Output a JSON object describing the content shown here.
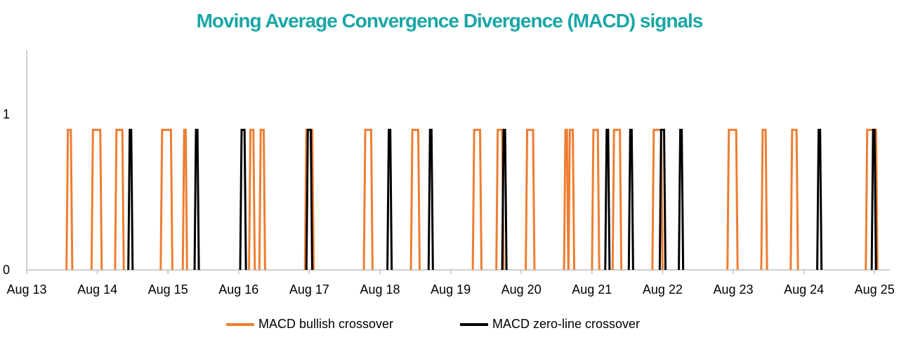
{
  "colors": {
    "title": "#1aa6a6",
    "bullish": "#ef7d31",
    "zero_line": "#000000",
    "axis": "#bfbfbf"
  },
  "chart_data": {
    "type": "line",
    "title": "Moving Average Convergence Divergence (MACD) signals",
    "xlabel": "",
    "ylabel": "",
    "x_ticks": [
      "Aug 13",
      "Aug 14",
      "Aug 15",
      "Aug 16",
      "Aug 17",
      "Aug 18",
      "Aug 19",
      "Aug 20",
      "Aug 21",
      "Aug 22",
      "Aug 23",
      "Aug 24",
      "Aug 25"
    ],
    "xlim": [
      "Aug 13",
      "Aug 25"
    ],
    "y_ticks": [
      0,
      1
    ],
    "ylim": [
      0,
      1.4
    ],
    "pulse_value": 0.9,
    "grid": false,
    "legend_position": "bottom",
    "series": [
      {
        "name": "MACD bullish crossover",
        "color": "#ef7d31",
        "pulses": [
          [
            "Aug 13 14:00",
            "Aug 13 15:00"
          ],
          [
            "Aug 13 22:30",
            "Aug 14 01:00"
          ],
          [
            "Aug 14 06:30",
            "Aug 14 08:30"
          ],
          [
            "Aug 14 22:00",
            "Aug 15 01:00"
          ],
          [
            "Aug 15 05:30",
            "Aug 15 06:00"
          ],
          [
            "Aug 16 04:00",
            "Aug 16 05:00"
          ],
          [
            "Aug 16 07:30",
            "Aug 16 08:30"
          ],
          [
            "Aug 16 23:00",
            "Aug 17 01:00"
          ],
          [
            "Aug 17 19:00",
            "Aug 17 21:00"
          ],
          [
            "Aug 18 11:00",
            "Aug 18 13:00"
          ],
          [
            "Aug 19 08:00",
            "Aug 19 10:00"
          ],
          [
            "Aug 19 16:00",
            "Aug 19 17:30"
          ],
          [
            "Aug 20 02:00",
            "Aug 20 04:00"
          ],
          [
            "Aug 20 15:00",
            "Aug 20 15:30"
          ],
          [
            "Aug 20 16:30",
            "Aug 20 17:30"
          ],
          [
            "Aug 21 00:30",
            "Aug 21 02:00"
          ],
          [
            "Aug 21 07:30",
            "Aug 21 09:30"
          ],
          [
            "Aug 21 21:00",
            "Aug 21 23:30"
          ],
          [
            "Aug 22 22:30",
            "Aug 23 01:00"
          ],
          [
            "Aug 23 10:00",
            "Aug 23 11:00"
          ],
          [
            "Aug 23 20:00",
            "Aug 23 21:30"
          ],
          [
            "Aug 24 21:30",
            "Aug 25 00:30"
          ]
        ]
      },
      {
        "name": "MACD zero-line crossover",
        "color": "#000000",
        "pulses": [
          [
            "Aug 14 11:00",
            "Aug 14 11:30"
          ],
          [
            "Aug 15 09:30",
            "Aug 15 10:00"
          ],
          [
            "Aug 16 01:00",
            "Aug 16 02:00"
          ],
          [
            "Aug 16 23:30",
            "Aug 17 00:30"
          ],
          [
            "Aug 18 03:00",
            "Aug 18 03:30"
          ],
          [
            "Aug 18 17:00",
            "Aug 18 17:30"
          ],
          [
            "Aug 19 18:00",
            "Aug 19 18:30"
          ],
          [
            "Aug 21 05:00",
            "Aug 21 05:30"
          ],
          [
            "Aug 21 13:00",
            "Aug 21 13:30"
          ],
          [
            "Aug 21 23:30",
            "Aug 22 00:30"
          ],
          [
            "Aug 22 06:00",
            "Aug 22 06:30"
          ],
          [
            "Aug 24 05:00",
            "Aug 24 05:30"
          ],
          [
            "Aug 24 23:30",
            "Aug 25 00:00"
          ]
        ]
      }
    ]
  }
}
